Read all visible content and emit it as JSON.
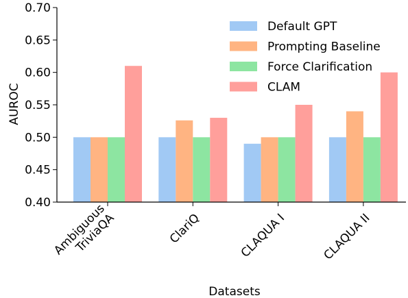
{
  "chart_data": {
    "type": "bar",
    "categories": [
      "Ambiguous\nTriviaQA",
      "ClariQ",
      "CLAQUA I",
      "CLAQUA II"
    ],
    "series": [
      {
        "name": "Default GPT",
        "color": "#a1c9f4",
        "values": [
          0.5,
          0.5,
          0.49,
          0.5
        ]
      },
      {
        "name": "Prompting Baseline",
        "color": "#ffb482",
        "values": [
          0.5,
          0.526,
          0.5,
          0.54
        ]
      },
      {
        "name": "Force Clarification",
        "color": "#8de5a1",
        "values": [
          0.5,
          0.5,
          0.5,
          0.5
        ]
      },
      {
        "name": "CLAM",
        "color": "#ff9f9b",
        "values": [
          0.61,
          0.53,
          0.55,
          0.6
        ]
      }
    ],
    "xlabel": "Datasets",
    "ylabel": "AUROC",
    "ylim": [
      0.4,
      0.7
    ],
    "yticks": [
      {
        "value": 0.4,
        "label": "0.40"
      },
      {
        "value": 0.45,
        "label": "0.45"
      },
      {
        "value": 0.5,
        "label": "0.50"
      },
      {
        "value": 0.55,
        "label": "0.55"
      },
      {
        "value": 0.6,
        "label": "0.60"
      },
      {
        "value": 0.65,
        "label": "0.65"
      },
      {
        "value": 0.7,
        "label": "0.70"
      }
    ],
    "legend": "upper right",
    "grid": false
  }
}
